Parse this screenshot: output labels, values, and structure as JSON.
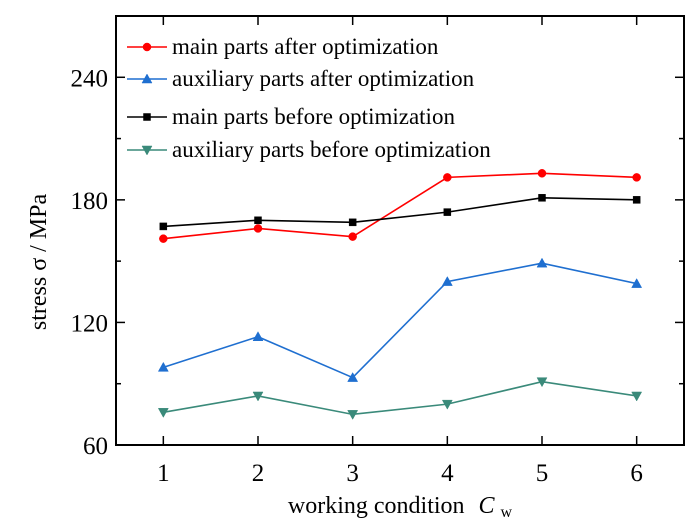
{
  "chart_data": {
    "type": "line",
    "xlabel": "working condition",
    "xlabel_symbol": "C",
    "xlabel_subscript": "w",
    "ylabel": "stress σ / MPa",
    "categories": [
      "1",
      "2",
      "3",
      "4",
      "5",
      "6"
    ],
    "x": [
      1,
      2,
      3,
      4,
      5,
      6
    ],
    "xlim": [
      0.5,
      6.5
    ],
    "ylim": [
      60,
      270
    ],
    "yticks": [
      60,
      120,
      180,
      240
    ],
    "grid": false,
    "legend_position": "top-left",
    "series": [
      {
        "name": "main parts after optimization",
        "color": "#ff0000",
        "marker": "circle",
        "values": [
          161,
          166,
          162,
          191,
          193,
          191
        ]
      },
      {
        "name": "auxiliary parts after optimization",
        "color": "#1f6fd0",
        "marker": "triangle-up",
        "values": [
          98,
          113,
          93,
          140,
          149,
          139
        ]
      },
      {
        "name": "main parts before optimization",
        "color": "#000000",
        "marker": "square",
        "values": [
          167,
          170,
          169,
          174,
          181,
          180
        ]
      },
      {
        "name": "auxiliary parts before optimization",
        "color": "#3a8a7a",
        "marker": "triangle-down",
        "values": [
          76,
          84,
          75,
          80,
          91,
          84
        ]
      }
    ]
  }
}
